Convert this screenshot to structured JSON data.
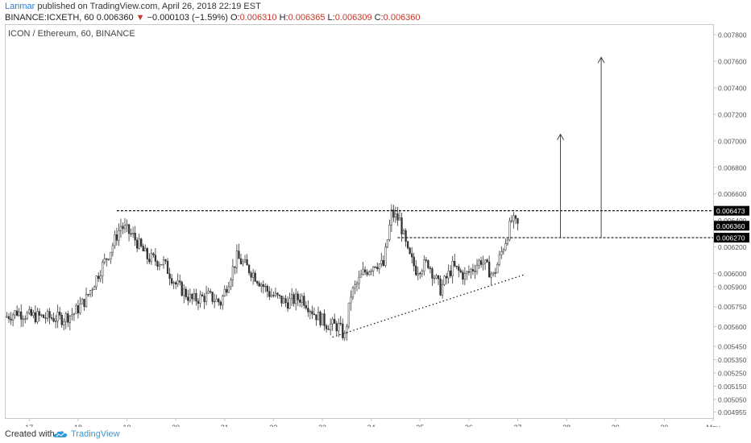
{
  "header": {
    "author": "Lanmar",
    "published": "published on TradingView.com, April 26, 2018 22:19 EST",
    "symbol": "BINANCE:ICXETH, 60",
    "last": "0.006360",
    "change_arrow": "▼",
    "change": "−0.000103 (−1.59%)",
    "o_label": "O:",
    "o": "0.006310",
    "h_label": "H:",
    "h": "0.006365",
    "l_label": "L:",
    "l": "0.006309",
    "c_label": "C:",
    "c": "0.006360"
  },
  "footer": {
    "created_with": "Created with",
    "brand": "TradingView",
    "logo_icon": "tradingview-cloud-icon"
  },
  "colors": {
    "candles": "#333333",
    "grid_border": "#c8c8c8",
    "axis_text": "#555555",
    "label_bg": "#000000",
    "brand": "#2f9bdc",
    "author": "#2f7dd6",
    "down": "#c0392b"
  },
  "chart_data": {
    "type": "candlestick",
    "title": "ICON / Ethereum, 60, BINANCE",
    "x_axis": {
      "type": "date",
      "ticks": [
        "17",
        "18",
        "19",
        "20",
        "21",
        "22",
        "23",
        "24",
        "25",
        "26",
        "27",
        "28",
        "29",
        "30",
        "May"
      ],
      "range": [
        "2018-04-16T12:00",
        "2018-05-01T00:00"
      ]
    },
    "y_axis": {
      "ticks": [
        "0.007800",
        "0.007600",
        "0.007400",
        "0.007200",
        "0.007000",
        "0.006800",
        "0.006600",
        "0.006400",
        "0.006200",
        "0.006000",
        "0.005900",
        "0.005750",
        "0.005600",
        "0.005450",
        "0.005350",
        "0.005250",
        "0.005150",
        "0.005050",
        "0.004955"
      ],
      "range": [
        0.00491,
        0.00788
      ],
      "price_labels": [
        "0.006473",
        "0.006360",
        "0.006270"
      ]
    },
    "close_path": [
      [
        "2018-04-16T12:00",
        0.00567
      ],
      [
        "2018-04-16T18:00",
        0.00571
      ],
      [
        "2018-04-17T00:00",
        0.00568
      ],
      [
        "2018-04-17T08:00",
        0.00567
      ],
      [
        "2018-04-17T16:00",
        0.00566
      ],
      [
        "2018-04-17T22:00",
        0.0057
      ],
      [
        "2018-04-18T04:00",
        0.00581
      ],
      [
        "2018-04-18T10:00",
        0.006
      ],
      [
        "2018-04-18T16:00",
        0.00618
      ],
      [
        "2018-04-18T21:00",
        0.00636
      ],
      [
        "2018-04-19T03:00",
        0.00628
      ],
      [
        "2018-04-19T10:00",
        0.00612
      ],
      [
        "2018-04-19T18:00",
        0.00608
      ],
      [
        "2018-04-20T00:00",
        0.00592
      ],
      [
        "2018-04-20T08:00",
        0.0058
      ],
      [
        "2018-04-20T16:00",
        0.00583
      ],
      [
        "2018-04-20T22:00",
        0.00578
      ],
      [
        "2018-04-21T06:00",
        0.00612
      ],
      [
        "2018-04-21T14:00",
        0.006
      ],
      [
        "2018-04-21T22:00",
        0.00585
      ],
      [
        "2018-04-22T06:00",
        0.00578
      ],
      [
        "2018-04-22T14:00",
        0.00582
      ],
      [
        "2018-04-22T20:00",
        0.0057
      ],
      [
        "2018-04-23T02:00",
        0.00562
      ],
      [
        "2018-04-23T08:00",
        0.0056
      ],
      [
        "2018-04-23T11:00",
        0.00552
      ],
      [
        "2018-04-23T14:00",
        0.00584
      ],
      [
        "2018-04-23T20:00",
        0.006
      ],
      [
        "2018-04-24T02:00",
        0.00608
      ],
      [
        "2018-04-24T06:00",
        0.00606
      ],
      [
        "2018-04-24T10:00",
        0.00645
      ],
      [
        "2018-04-24T14:00",
        0.0064
      ],
      [
        "2018-04-24T18:00",
        0.00615
      ],
      [
        "2018-04-24T22:00",
        0.00603
      ],
      [
        "2018-04-25T04:00",
        0.00608
      ],
      [
        "2018-04-25T10:00",
        0.00588
      ],
      [
        "2018-04-25T16:00",
        0.00605
      ],
      [
        "2018-04-25T22:00",
        0.00598
      ],
      [
        "2018-04-26T06:00",
        0.0061
      ],
      [
        "2018-04-26T12:00",
        0.00598
      ],
      [
        "2018-04-26T18:00",
        0.00625
      ],
      [
        "2018-04-26T21:00",
        0.0064
      ],
      [
        "2018-04-27T00:00",
        0.00636
      ]
    ],
    "annotations": {
      "resistance_line": {
        "from": "2018-04-18T19:00",
        "to": "2018-04-30T03:00",
        "y": 0.006473,
        "style": "dashed"
      },
      "support_line": {
        "from": "2018-04-24T13:00",
        "to": "2018-04-30T03:00",
        "y": 0.00627,
        "style": "dashed"
      },
      "trendline": {
        "from": [
          "2018-04-23T05:00",
          0.00552
        ],
        "to": [
          "2018-04-27T03:00",
          0.00599
        ],
        "style": "dotted"
      },
      "arrows": [
        {
          "x": "2018-04-27T21:00",
          "from": 0.00627,
          "to": 0.00705
        },
        {
          "x": "2018-04-28T17:00",
          "from": 0.00627,
          "to": 0.00763
        }
      ]
    }
  }
}
